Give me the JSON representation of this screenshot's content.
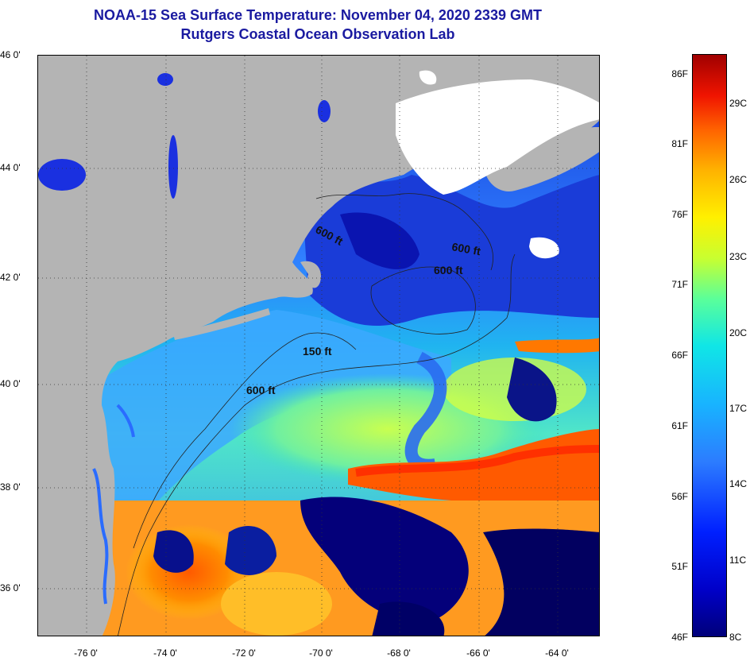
{
  "header": {
    "title": "NOAA-15 Sea Surface Temperature:  November 04, 2020 2339 GMT",
    "subtitle": "Rutgers Coastal Ocean Observation Lab"
  },
  "map": {
    "latitude_labels": [
      "46 0'",
      "44 0'",
      "42 0'",
      "40 0'",
      "38 0'",
      "36 0'"
    ],
    "longitude_labels": [
      "-76 0'",
      "-74 0'",
      "-72 0'",
      "-70 0'",
      "-68 0'",
      "-66 0'",
      "-64 0'"
    ],
    "contour_labels": [
      "600 ft",
      "600 ft",
      "600 ft",
      "150 ft",
      "600 ft"
    ],
    "land_color": "#b4b4b4",
    "cloud_color": "#ffffff"
  },
  "colorbar": {
    "fahrenheit_labels": [
      "86F",
      "81F",
      "76F",
      "71F",
      "66F",
      "61F",
      "56F",
      "51F",
      "46F"
    ],
    "celsius_labels": [
      "29C",
      "26C",
      "23C",
      "20C",
      "17C",
      "14C",
      "11C",
      "8C"
    ]
  }
}
